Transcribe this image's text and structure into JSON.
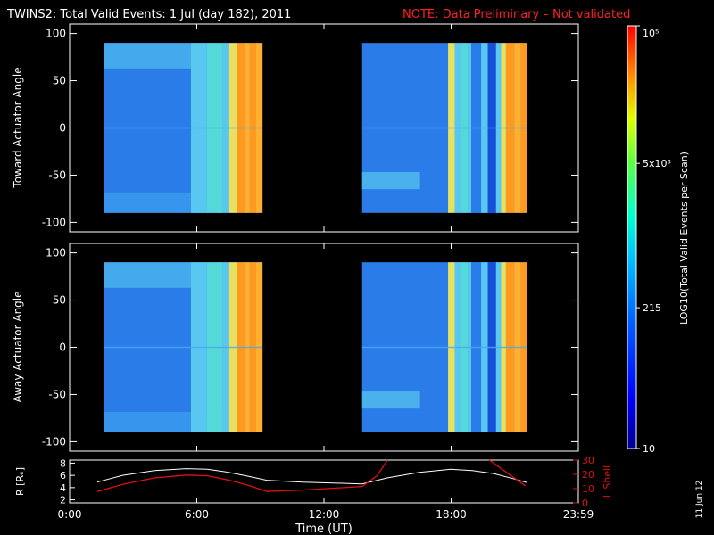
{
  "header": {
    "title": "TWINS2: Total Valid Events:  1 Jul (day 182), 2011",
    "note": "NOTE: Data Preliminary – Not validated"
  },
  "side_date": "11 Jun 12",
  "colors": {
    "background": "#000000",
    "axes": "#ffffff",
    "note": "#ff2020",
    "lshell": "#e01010",
    "radius": "#ffffff"
  },
  "chart_data": [
    {
      "type": "heatmap",
      "ylabel": "Toward Actuator Angle",
      "x_range": [
        0,
        24
      ],
      "ylim": [
        -110,
        110
      ],
      "yticks": [
        100,
        50,
        0,
        -50,
        -100
      ],
      "y_extent": [
        -90,
        90
      ],
      "segments": [
        {
          "x": [
            1.6,
            9.1
          ],
          "pattern": "A"
        },
        {
          "x": [
            13.8,
            21.6
          ],
          "pattern": "B"
        }
      ]
    },
    {
      "type": "heatmap",
      "ylabel": "Away Actuator Angle",
      "x_range": [
        0,
        24
      ],
      "ylim": [
        -110,
        110
      ],
      "yticks": [
        100,
        50,
        0,
        -50,
        -100
      ],
      "y_extent": [
        -90,
        90
      ],
      "segments": [
        {
          "x": [
            1.6,
            9.1
          ],
          "pattern": "A"
        },
        {
          "x": [
            13.8,
            21.6
          ],
          "pattern": "B"
        }
      ]
    },
    {
      "type": "line",
      "xlabel": "Time (UT)",
      "ylabel": "R [Rₑ]",
      "ylabel2": "L Shell",
      "x_range": [
        0,
        24
      ],
      "ylim": [
        1.5,
        8.5
      ],
      "yticks": [
        8,
        6,
        4,
        2
      ],
      "ylim2": [
        0,
        30
      ],
      "yticks2": [
        30,
        20,
        10,
        0
      ],
      "xticks": [
        {
          "value": 0,
          "label": "0:00"
        },
        {
          "value": 6,
          "label": "6:00"
        },
        {
          "value": 12,
          "label": "12:00"
        },
        {
          "value": 18,
          "label": "18:00"
        },
        {
          "value": 24,
          "label": "23:59"
        }
      ],
      "series": [
        {
          "axis": "left",
          "x": [
            1.3,
            2.5,
            4.0,
            5.5,
            6.5,
            7.5,
            8.5,
            9.3,
            11,
            13,
            13.8,
            15,
            16.5,
            18,
            19,
            20,
            21,
            21.6
          ],
          "y": [
            4.9,
            6.0,
            6.8,
            7.1,
            7.0,
            6.5,
            5.8,
            5.2,
            4.9,
            4.7,
            4.6,
            5.6,
            6.5,
            7.0,
            6.8,
            6.3,
            5.4,
            4.8
          ]
        },
        {
          "axis": "right",
          "x": [
            1.3,
            2.5,
            4.0,
            5.5,
            6.5,
            7.5,
            8.5,
            9.3,
            11,
            13.8,
            14.5,
            15.0
          ],
          "y": [
            8,
            13,
            17.5,
            19.5,
            19,
            16,
            12,
            8,
            9,
            11.5,
            19,
            30
          ],
          "x2": [
            19.8,
            21.5
          ],
          "y2": [
            30,
            12
          ]
        }
      ]
    },
    {
      "type": "heatmap",
      "title": "",
      "ylabel": "LOG10(Total Valid Events per Scan)",
      "ticks": [
        {
          "value": 10,
          "label": "10"
        },
        {
          "value": 215,
          "label": "215"
        },
        {
          "value": 5000,
          "label": "5x10³"
        },
        {
          "value": 100000,
          "label": "10⁵"
        }
      ],
      "scale": "log",
      "range": [
        10,
        100000
      ]
    }
  ]
}
